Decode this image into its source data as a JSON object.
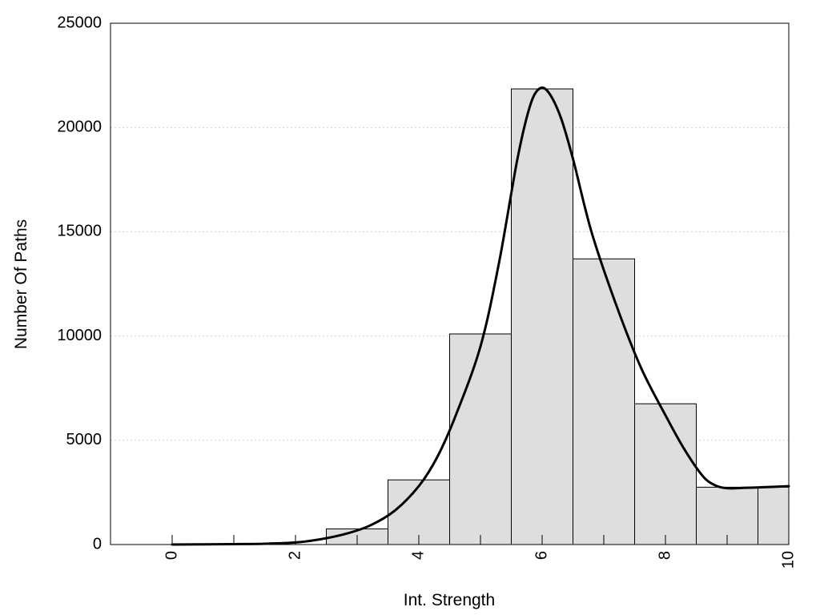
{
  "chart_data": {
    "type": "bar",
    "title": "",
    "xlabel": "Int. Strength",
    "ylabel": "Number Of Paths",
    "xlim": [
      -1,
      10
    ],
    "ylim": [
      0,
      25000
    ],
    "grid": "horizontal dotted",
    "x_ticks": [
      "0",
      "2",
      "4",
      "6",
      "8",
      "10"
    ],
    "y_ticks": [
      "0",
      "5000",
      "10000",
      "15000",
      "20000",
      "25000"
    ],
    "bins": [
      {
        "from": 2.5,
        "to": 3.5,
        "value": 750
      },
      {
        "from": 3.5,
        "to": 4.5,
        "value": 3100
      },
      {
        "from": 4.5,
        "to": 5.5,
        "value": 10100
      },
      {
        "from": 5.5,
        "to": 6.5,
        "value": 21850
      },
      {
        "from": 6.5,
        "to": 7.5,
        "value": 13700
      },
      {
        "from": 7.5,
        "to": 8.5,
        "value": 6750
      },
      {
        "from": 8.5,
        "to": 9.5,
        "value": 2750
      },
      {
        "from": 9.5,
        "to": 10,
        "value": 2750
      }
    ],
    "curve": {
      "x": [
        0,
        1,
        1.5,
        2,
        2.4,
        2.8,
        3.2,
        3.6,
        4.0,
        4.3,
        4.6,
        5.0,
        5.3,
        5.6,
        5.8,
        5.95,
        6.1,
        6.3,
        6.5,
        6.8,
        7.2,
        7.6,
        8.0,
        8.3,
        8.6,
        8.8,
        9.0,
        9.3,
        9.6,
        10.0
      ],
      "y": [
        0,
        20,
        40,
        100,
        250,
        500,
        900,
        1600,
        2800,
        4200,
        6200,
        9500,
        13500,
        18500,
        21000,
        21850,
        21700,
        20500,
        18500,
        15000,
        11500,
        8500,
        6200,
        4600,
        3300,
        2850,
        2700,
        2720,
        2750,
        2800
      ]
    },
    "colors": {
      "bar_fill": "#dedede",
      "bar_stroke": "#000000",
      "curve": "#000000",
      "grid": "#cfcfcf"
    }
  }
}
